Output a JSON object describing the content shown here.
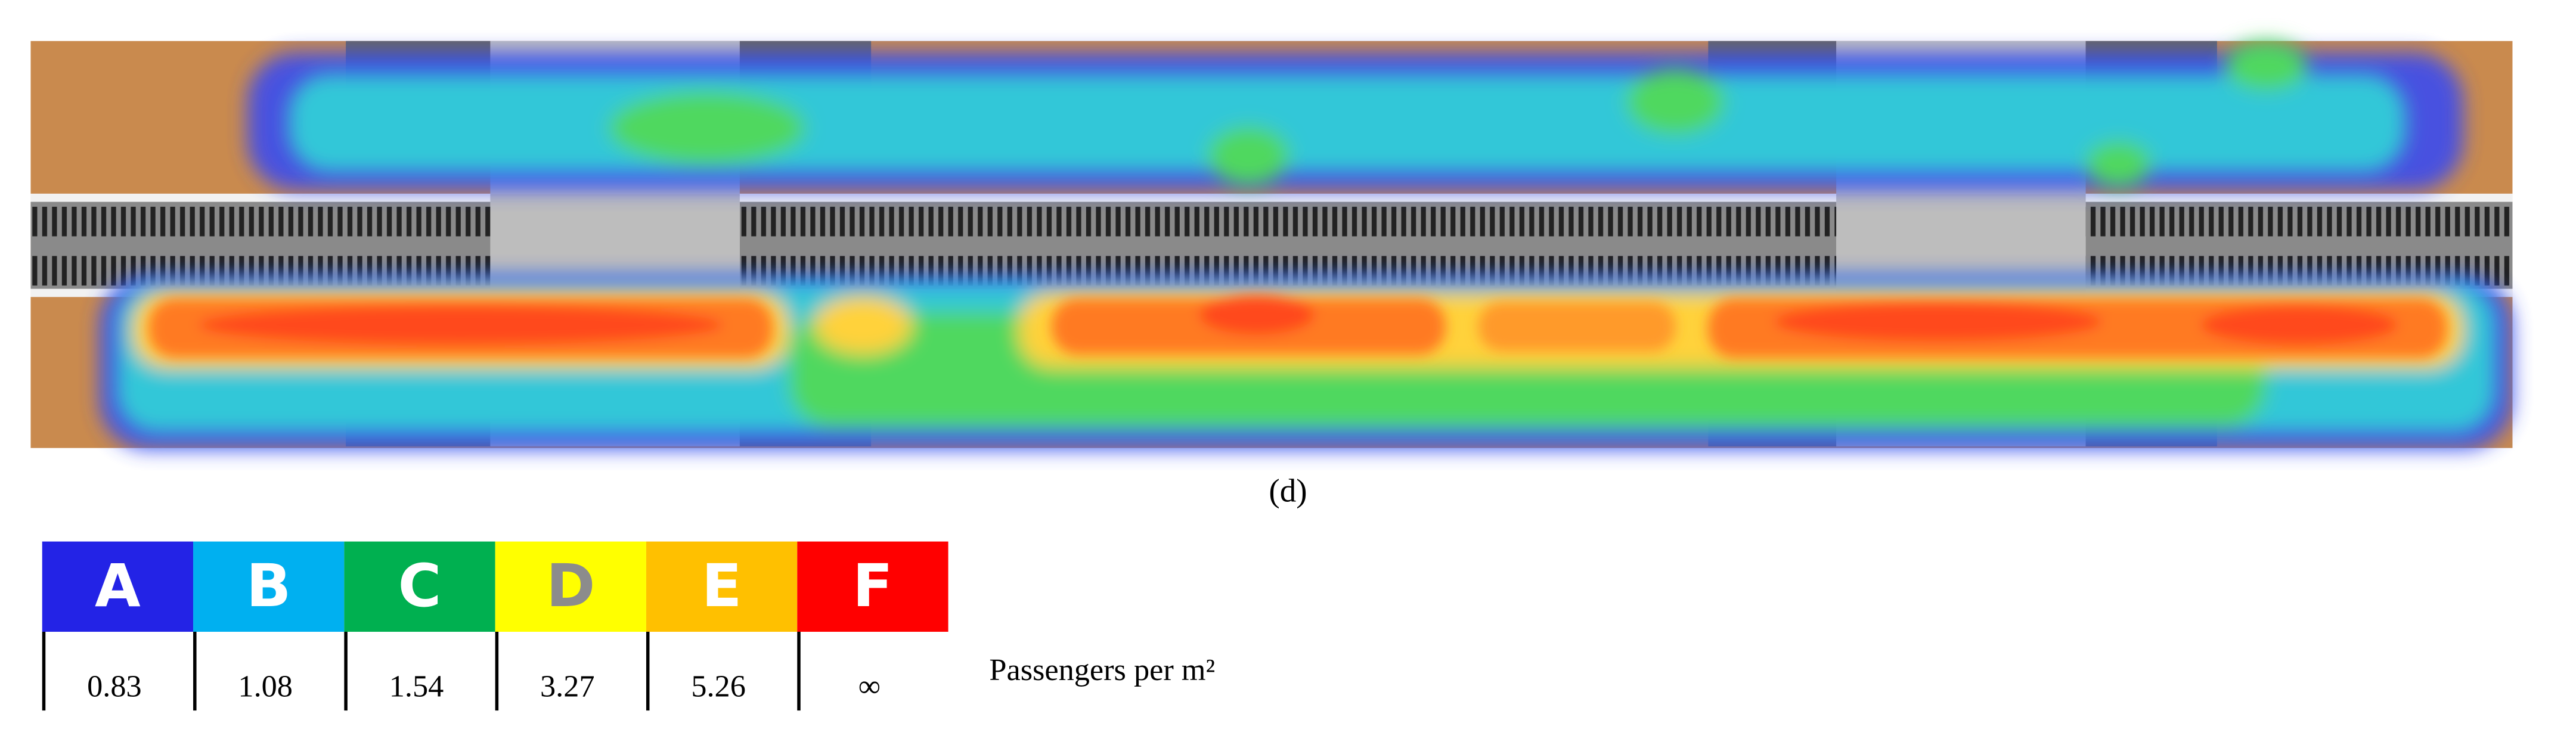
{
  "caption": "(d)",
  "legend": {
    "levels": [
      {
        "label": "A",
        "color": "#2323e6",
        "text_color": "#ffffff",
        "value": "0.83"
      },
      {
        "label": "B",
        "color": "#00b0f0",
        "text_color": "#ffffff",
        "value": "1.08"
      },
      {
        "label": "C",
        "color": "#00b050",
        "text_color": "#ffffff",
        "value": "1.54"
      },
      {
        "label": "D",
        "color": "#ffff00",
        "text_color": "#8c8c8c",
        "value": "3.27"
      },
      {
        "label": "E",
        "color": "#ffc000",
        "text_color": "#ffffff",
        "value": "5.26"
      },
      {
        "label": "F",
        "color": "#ff0000",
        "text_color": "#ffffff",
        "value": "∞"
      }
    ],
    "unit": "Passengers per m²"
  }
}
